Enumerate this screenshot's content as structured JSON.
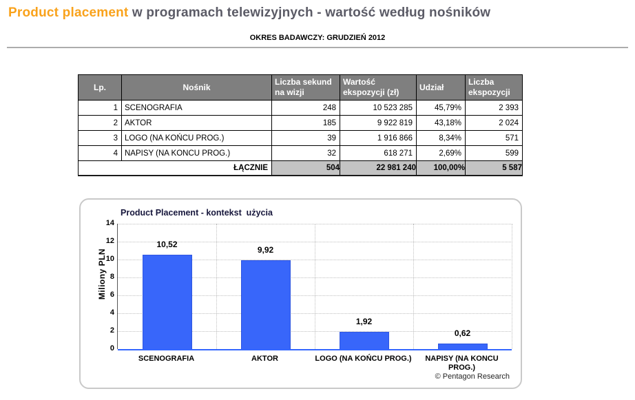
{
  "header": {
    "title_highlight": "Product placement",
    "title_rest": " w programach telewizyjnych - wartość według nośników",
    "subtitle": "OKRES BADAWCZY: GRUDZIEŃ 2012"
  },
  "colors": {
    "accent_orange": "#F9A21B",
    "title_gray": "#5B5B66",
    "table_header_bg": "#7F7F7F",
    "table_total_bg": "#C3C3C3",
    "bar_blue": "#3866FA",
    "bar_border_blue": "#2F56E0",
    "axis_blue": "#3366FF"
  },
  "table": {
    "columns": [
      "Lp.",
      "Nośnik",
      "Liczba sekund na wizji",
      "Wartość ekspozycji (zł)",
      "Udział",
      "Liczba ekspozycji"
    ],
    "rows": [
      [
        "1",
        "SCENOGRAFIA",
        "248",
        "10 523 285",
        "45,79%",
        "2 393"
      ],
      [
        "2",
        "AKTOR",
        "185",
        "9 922 819",
        "43,18%",
        "2 024"
      ],
      [
        "3",
        "LOGO (NA KOŃCU PROG.)",
        "39",
        "1 916 866",
        "8,34%",
        "571"
      ],
      [
        "4",
        "NAPISY (NA KONCU PROG.)",
        "32",
        "618 271",
        "2,69%",
        "599"
      ]
    ],
    "total": {
      "label": "ŁĄCZNIE",
      "values": [
        "504",
        "22 981 240",
        "100,00%",
        "5 587"
      ]
    }
  },
  "chart_data": {
    "type": "bar",
    "title": "Product Placement - kontekst  użycia",
    "ylabel": "Miliony PLN",
    "categories": [
      "SCENOGRAFIA",
      "AKTOR",
      "LOGO (NA KOŃCU PROG.)",
      "NAPISY (NA KONCU PROG.)"
    ],
    "categories_display": [
      "SCENOGRAFIA",
      "AKTOR",
      "LOGO (NA KOŃCU PROG.)",
      "NAPISY (NA KONCU\nPROG.)"
    ],
    "values": [
      10.52,
      9.92,
      1.92,
      0.62
    ],
    "value_labels": [
      "10,52",
      "9,92",
      "1,92",
      "0,62"
    ],
    "ylim": [
      0,
      14
    ],
    "yticks": [
      0,
      2,
      4,
      6,
      8,
      10,
      12,
      14
    ],
    "grid": true,
    "legend": false,
    "bar_color": "#3866FA",
    "bar_border_color": "#2F56E0",
    "axis_color": "#3366FF",
    "credit": "© Pentagon Research"
  }
}
